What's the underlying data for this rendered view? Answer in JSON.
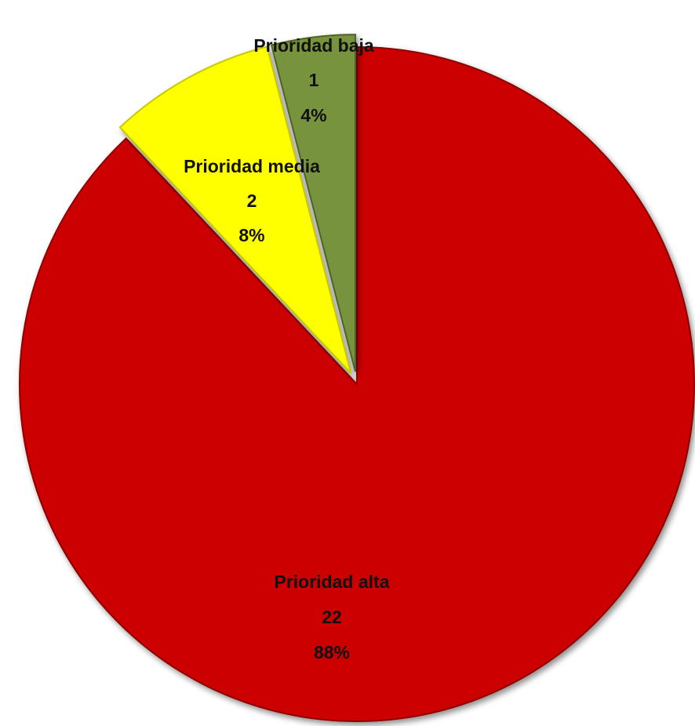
{
  "chart_data": {
    "type": "pie",
    "title": "",
    "slices": [
      {
        "label": "Prioridad alta",
        "value": 22,
        "percent": "88%",
        "color": "#cc0000",
        "edge": "#8e0000"
      },
      {
        "label": "Prioridad media",
        "value": 2,
        "percent": "8%",
        "color": "#ffff00",
        "edge": "#c9c900"
      },
      {
        "label": "Prioridad baja",
        "value": 1,
        "percent": "4%",
        "color": "#77933c",
        "edge": "#4f6328"
      }
    ],
    "start_angle": "12 o'clock, clockwise",
    "exploded": [
      "Prioridad media",
      "Prioridad baja"
    ],
    "legend": "none",
    "data_labels": "inside"
  }
}
